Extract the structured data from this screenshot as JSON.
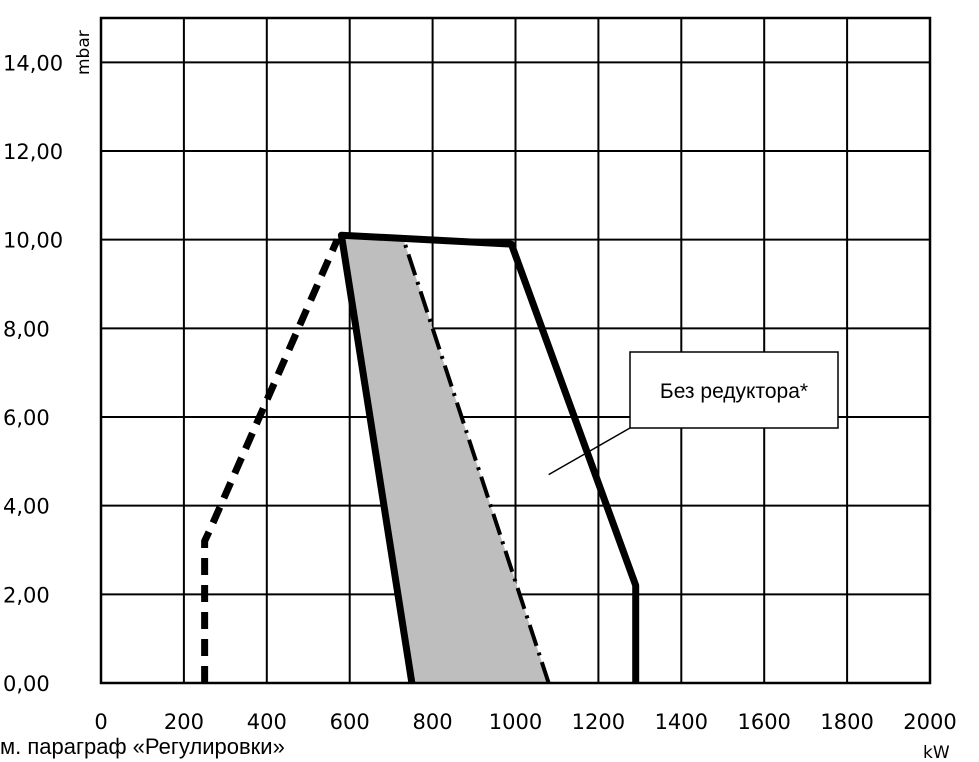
{
  "chart_data": {
    "type": "line",
    "y_unit": "mbar",
    "x_unit": "kW",
    "xlim": [
      0,
      2000
    ],
    "ylim": [
      0,
      15
    ],
    "grid": true,
    "x_ticks": [
      "0",
      "200",
      "400",
      "600",
      "800",
      "1000",
      "1200",
      "1400",
      "1600",
      "1800",
      "2000"
    ],
    "y_ticks": [
      "0,00",
      "2,00",
      "4,00",
      "6,00",
      "8,00",
      "10,00",
      "12,00",
      "14,00"
    ],
    "series": [
      {
        "style": "dashed",
        "x": [
          250,
          250,
          265,
          570
        ],
        "y": [
          0,
          3.2,
          3.5,
          10.0
        ]
      },
      {
        "style": "solid",
        "x": [
          750,
          580,
          990,
          1290,
          1290
        ],
        "y": [
          0,
          10.1,
          9.9,
          2.2,
          0
        ]
      },
      {
        "style": "dash-dot",
        "x": [
          1080,
          730
        ],
        "y": [
          0,
          10.0
        ]
      }
    ],
    "shaded_region": {
      "x": [
        750,
        580,
        730,
        1080
      ],
      "y": [
        0,
        10.05,
        10.0,
        0
      ],
      "color": "#bebebe"
    },
    "annotation": {
      "text": "Без редуктора*",
      "pointer_x": 1080,
      "pointer_y": 4.7
    },
    "footnote": "м. параграф «Регулировки»"
  }
}
